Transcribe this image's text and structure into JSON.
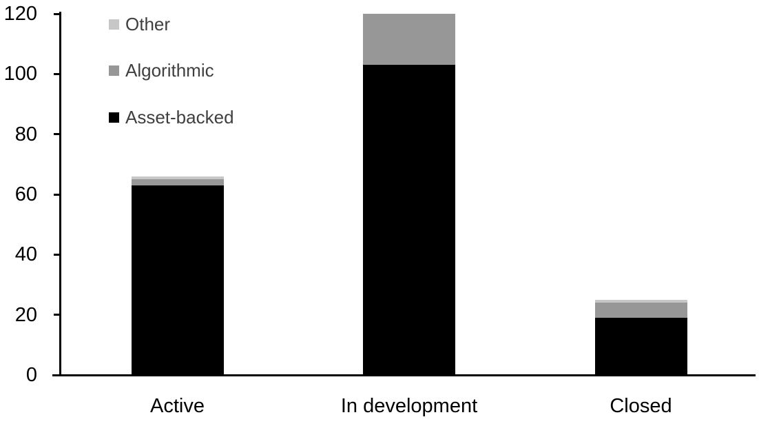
{
  "chart_data": {
    "type": "bar",
    "stacked": true,
    "title": "",
    "categories": [
      "Active",
      "In development",
      "Closed"
    ],
    "series": [
      {
        "name": "Asset-backed",
        "color": "#000000",
        "values": [
          63,
          103,
          19
        ]
      },
      {
        "name": "Algorithmic",
        "color": "#979797",
        "values": [
          2,
          17,
          5
        ]
      },
      {
        "name": "Other",
        "color": "#c7c7c7",
        "values": [
          1,
          0,
          1
        ]
      }
    ],
    "stack_totals": [
      66,
      120,
      25
    ],
    "y_axis": {
      "min": 0,
      "max": 120,
      "step": 20,
      "tick_labels": [
        "0",
        "20",
        "40",
        "60",
        "80",
        "100",
        "120"
      ]
    },
    "legend": {
      "position": "top-left",
      "text_color": "#3f3f3f",
      "items": [
        {
          "label": "Other",
          "color": "#c7c7c7"
        },
        {
          "label": "Algorithmic",
          "color": "#979797"
        },
        {
          "label": "Asset-backed",
          "color": "#000000"
        }
      ]
    },
    "grid": false,
    "axis_color": "#000000"
  }
}
